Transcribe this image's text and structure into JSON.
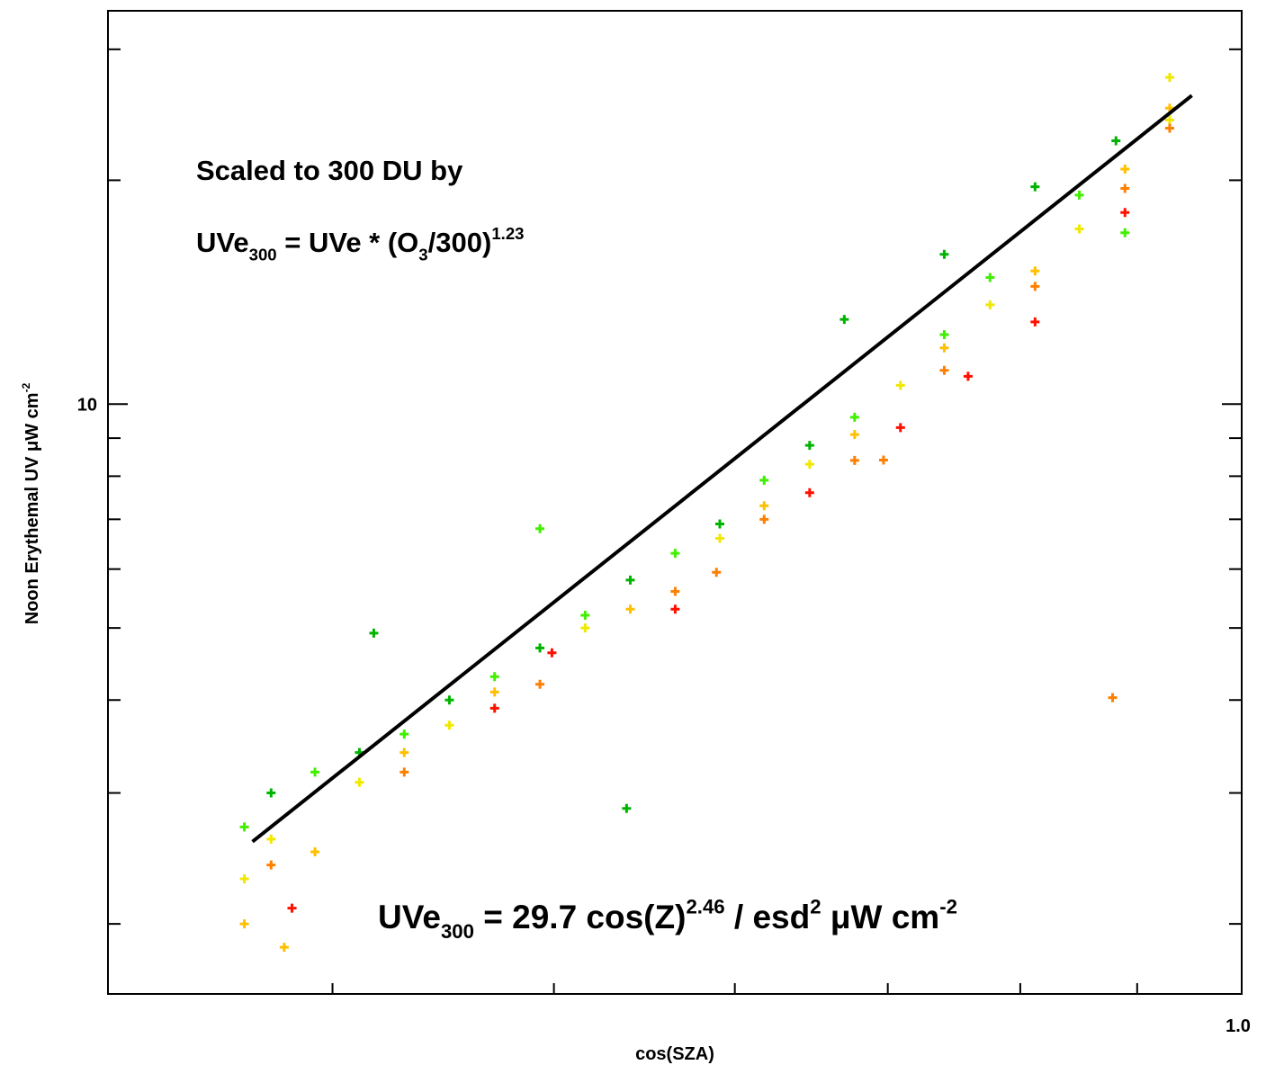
{
  "chart_data": {
    "type": "scatter",
    "x_label": "cos(SZA)",
    "y_label": [
      {
        "text": "Noon Erythemal UV  μW cm"
      },
      {
        "text": "-2",
        "style": "sup"
      }
    ],
    "annotations": [
      [
        {
          "text": "Scaled to 300 DU by"
        }
      ],
      [
        {
          "text": "UVe"
        },
        {
          "text": "300",
          "style": "sub"
        },
        {
          "text": " = UVe * (O"
        },
        {
          "text": "3",
          "style": "sub"
        },
        {
          "text": "/300)"
        },
        {
          "text": "1.23",
          "style": "sup"
        }
      ],
      [
        {
          "text": "UVe"
        },
        {
          "text": "300",
          "style": "sub"
        },
        {
          "text": " =  29.7 cos(Z)"
        },
        {
          "text": "2.46",
          "style": "sup"
        },
        {
          "text": " / esd"
        },
        {
          "text": "2",
          "style": "sup"
        },
        {
          "text": "  μW cm"
        },
        {
          "text": "-2",
          "style": "sup"
        }
      ]
    ],
    "xlim": [
      0.319,
      1.0
    ],
    "ylim": [
      1.61,
      33.8
    ],
    "xlog": true,
    "ylog": true,
    "xticks": [
      {
        "value": 1.0,
        "label": "1.0"
      }
    ],
    "xminorticks": [
      0.4,
      0.5,
      0.6,
      0.7,
      0.8,
      0.9
    ],
    "yticks": [
      10
    ],
    "yminorticks": [
      2,
      3,
      4,
      5,
      6,
      7,
      8,
      9,
      20,
      30
    ],
    "series": [
      {
        "color": "#00b400",
        "x": [
          0.376,
          0.411,
          0.45,
          0.493,
          0.54,
          0.591,
          0.647,
          0.67,
          0.741,
          0.812,
          0.881,
          0.538,
          0.417
        ],
        "values": [
          3.0,
          3.4,
          4.0,
          4.7,
          5.8,
          6.9,
          8.8,
          13.0,
          15.9,
          19.6,
          22.6,
          2.86,
          4.92
        ]
      },
      {
        "color": "#40f000",
        "x": [
          0.366,
          0.393,
          0.43,
          0.471,
          0.516,
          0.565,
          0.618,
          0.677,
          0.741,
          0.776,
          0.849,
          0.889,
          0.493
        ],
        "values": [
          2.7,
          3.2,
          3.6,
          4.3,
          5.2,
          6.3,
          7.9,
          9.6,
          12.4,
          14.8,
          19.1,
          17.0,
          6.8
        ]
      },
      {
        "color": "#f0e800",
        "x": [
          0.366,
          0.376,
          0.411,
          0.45,
          0.516,
          0.591,
          0.647,
          0.709,
          0.776,
          0.849,
          0.93,
          0.93
        ],
        "values": [
          2.3,
          2.6,
          3.1,
          3.7,
          5.0,
          6.6,
          8.3,
          10.6,
          13.6,
          17.2,
          24.1,
          27.5
        ]
      },
      {
        "color": "#ffc000",
        "x": [
          0.366,
          0.393,
          0.43,
          0.471,
          0.54,
          0.618,
          0.677,
          0.741,
          0.812,
          0.889,
          0.93,
          0.381
        ],
        "values": [
          2.0,
          2.5,
          3.4,
          4.1,
          5.3,
          7.3,
          9.1,
          11.9,
          15.1,
          20.7,
          25.0,
          1.86
        ]
      },
      {
        "color": "#ff8000",
        "x": [
          0.376,
          0.43,
          0.493,
          0.565,
          0.618,
          0.677,
          0.741,
          0.812,
          0.889,
          0.93,
          0.878,
          0.589,
          0.697
        ],
        "values": [
          2.4,
          3.2,
          4.2,
          5.6,
          7.0,
          8.4,
          11.1,
          14.4,
          19.5,
          23.5,
          4.03,
          5.94,
          8.41
        ]
      },
      {
        "color": "#ff1000",
        "x": [
          0.384,
          0.471,
          0.565,
          0.647,
          0.709,
          0.759,
          0.812,
          0.889,
          0.499
        ],
        "values": [
          2.1,
          3.9,
          5.3,
          7.6,
          9.3,
          10.9,
          12.9,
          18.1,
          4.63
        ]
      }
    ],
    "fit": {
      "color": "#000000",
      "x": [
        0.369,
        0.951
      ],
      "values": [
        2.58,
        26
      ]
    }
  }
}
